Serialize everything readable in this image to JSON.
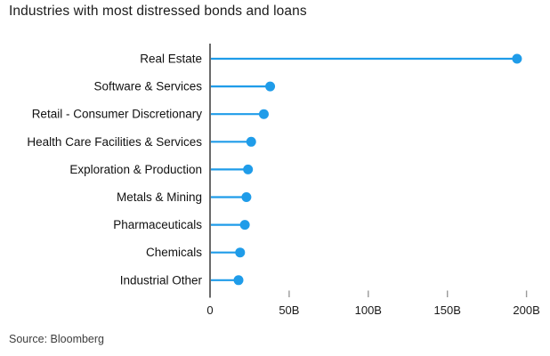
{
  "title": "Industries with most distressed bonds and loans",
  "source": "Source: Bloomberg",
  "colors": {
    "accent": "#1f9ce9",
    "axis_line": "#454545",
    "tick_mark": "#9a9a9a",
    "label_text": "#111111",
    "title_text": "#1b1b1b",
    "source_text": "#3d3d3d",
    "background": "#ffffff"
  },
  "chart_data": {
    "type": "bar",
    "style": "lollipop",
    "orientation": "horizontal",
    "title": "Industries with most distressed bonds and loans",
    "xlabel": "",
    "ylabel": "",
    "unit": "B",
    "categories": [
      "Real Estate",
      "Software & Services",
      "Retail - Consumer Discretionary",
      "Health Care Facilities & Services",
      "Exploration & Production",
      "Metals & Mining",
      "Pharmaceuticals",
      "Chemicals",
      "Industrial Other"
    ],
    "values": [
      194,
      38,
      34,
      26,
      24,
      23,
      22,
      19,
      18
    ],
    "xlim": [
      0,
      210
    ],
    "xticks": [
      {
        "value": 0,
        "label": "0"
      },
      {
        "value": 50,
        "label": "50B"
      },
      {
        "value": 100,
        "label": "100B"
      },
      {
        "value": 150,
        "label": "150B"
      },
      {
        "value": 200,
        "label": "200B"
      }
    ],
    "grid": false,
    "legend": null
  }
}
